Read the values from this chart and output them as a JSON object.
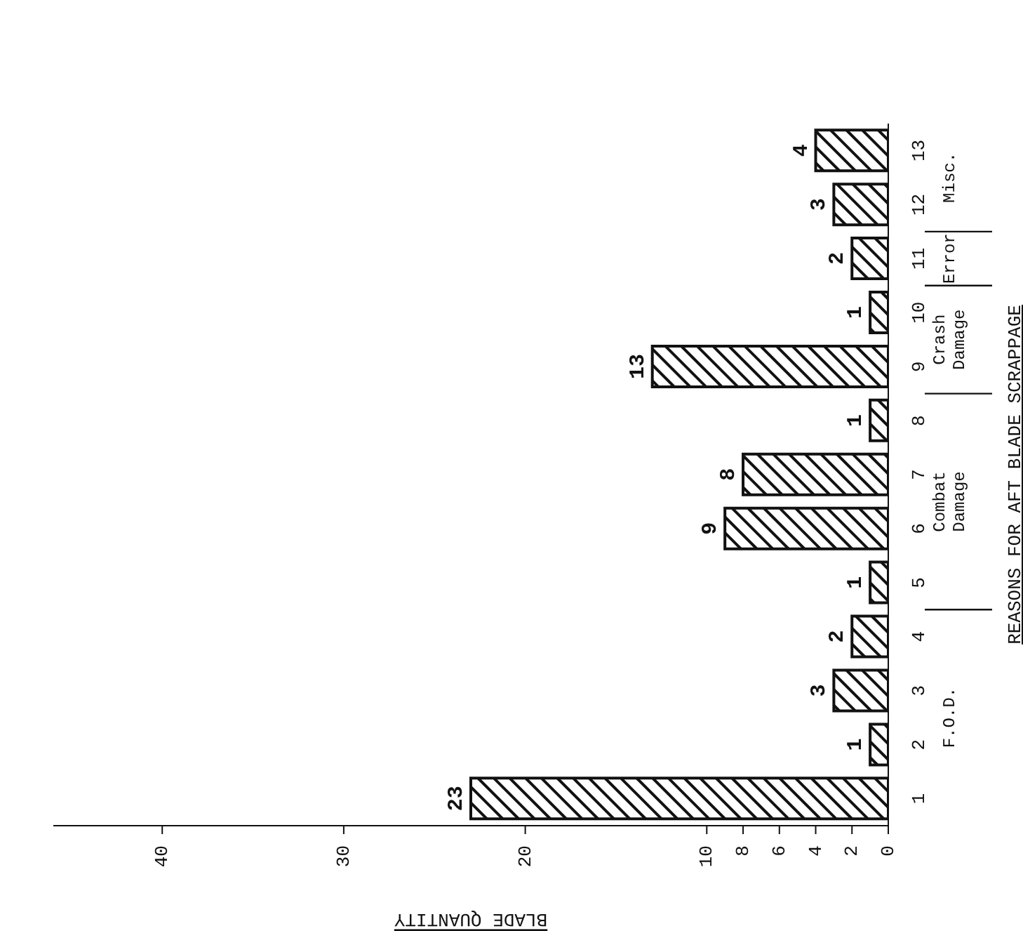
{
  "chart_data": {
    "type": "bar",
    "orientation": "horizontal",
    "xlabel": "BLADE QUANTITY",
    "ylabel": "REASONS FOR AFT BLADE SCRAPPAGE",
    "categories": [
      "13",
      "12",
      "11",
      "10",
      "9",
      "8",
      "7",
      "6",
      "5",
      "4",
      "3",
      "2",
      "1"
    ],
    "series": [
      {
        "color": "#111111",
        "values": [
          4,
          3,
          2,
          1,
          13,
          1,
          8,
          9,
          1,
          2,
          3,
          1,
          23
        ]
      }
    ],
    "data_labels": true,
    "xlim": [
      46,
      0
    ],
    "xticks": [
      0,
      2,
      4,
      6,
      8,
      10,
      20,
      30,
      40
    ],
    "grid": false,
    "legend": false,
    "annotations": [
      "Misc.",
      "Error",
      "Crash Damage",
      "Combat Damage",
      "F.O.D."
    ]
  }
}
